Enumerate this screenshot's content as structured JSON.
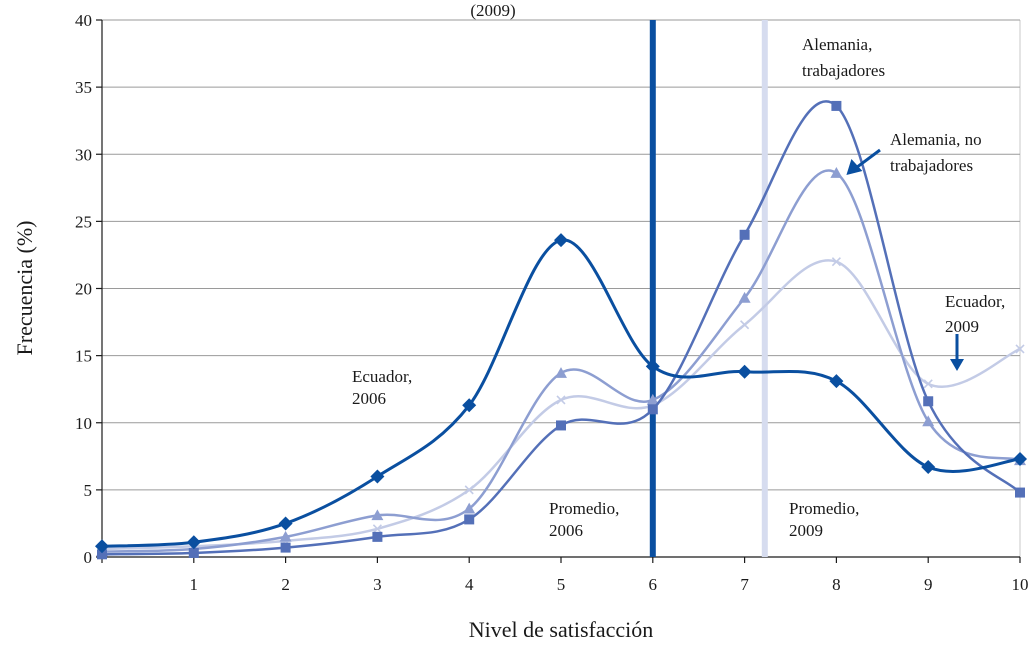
{
  "chart_data": {
    "type": "line",
    "title_partial": "(2009)",
    "xlabel": "Nivel de satisfacción",
    "ylabel": "Frecuencia (%)",
    "ylim": [
      0,
      40
    ],
    "y_ticks": [
      0,
      5,
      10,
      15,
      20,
      25,
      30,
      35,
      40
    ],
    "x_ticks": [
      1,
      2,
      3,
      4,
      5,
      6,
      7,
      8,
      9,
      10
    ],
    "grid": true,
    "x": [
      0,
      1,
      2,
      3,
      4,
      5,
      6,
      7,
      8,
      9,
      10
    ],
    "series": [
      {
        "key": "ecuador_2006",
        "marker": "diamond",
        "color": "#0a4fa0",
        "width": 3,
        "values": [
          0.8,
          1.1,
          2.5,
          6.0,
          11.3,
          23.6,
          14.2,
          13.8,
          13.1,
          6.7,
          7.3
        ]
      },
      {
        "key": "alemania_trab",
        "marker": "square",
        "color": "#5470b8",
        "width": 2.5,
        "values": [
          0.2,
          0.3,
          0.7,
          1.5,
          2.8,
          9.8,
          11.0,
          24.0,
          33.6,
          11.6,
          4.8
        ]
      },
      {
        "key": "alemania_no_trab",
        "marker": "triangle",
        "color": "#8d9ed1",
        "width": 2.5,
        "values": [
          0.4,
          0.6,
          1.5,
          3.1,
          3.6,
          13.7,
          11.7,
          19.3,
          28.6,
          10.1,
          7.2
        ]
      },
      {
        "key": "ecuador_2009",
        "marker": "x",
        "color": "#c3cbe6",
        "width": 2.5,
        "values": [
          0.6,
          0.8,
          1.2,
          2.1,
          5.0,
          11.7,
          11.3,
          17.3,
          22.0,
          12.9,
          15.5
        ]
      }
    ],
    "vlines": [
      {
        "key": "prom_2006",
        "x": 6.0,
        "color": "#0a4fa0",
        "width": 6
      },
      {
        "key": "prom_2009",
        "x": 7.22,
        "color": "#d6dcef",
        "width": 6
      }
    ],
    "annotations": {
      "ecuador_2006": [
        "Ecuador,",
        "2006"
      ],
      "promedio_2006": [
        "Promedio,",
        "2006"
      ],
      "promedio_2009": [
        "Promedio,",
        "2009"
      ],
      "alemania_trab": [
        "Alemania,",
        "trabajadores"
      ],
      "alemania_no_trab": [
        "Alemania, no",
        "trabajadores"
      ],
      "ecuador_2009": [
        "Ecuador,",
        "2009"
      ]
    }
  }
}
